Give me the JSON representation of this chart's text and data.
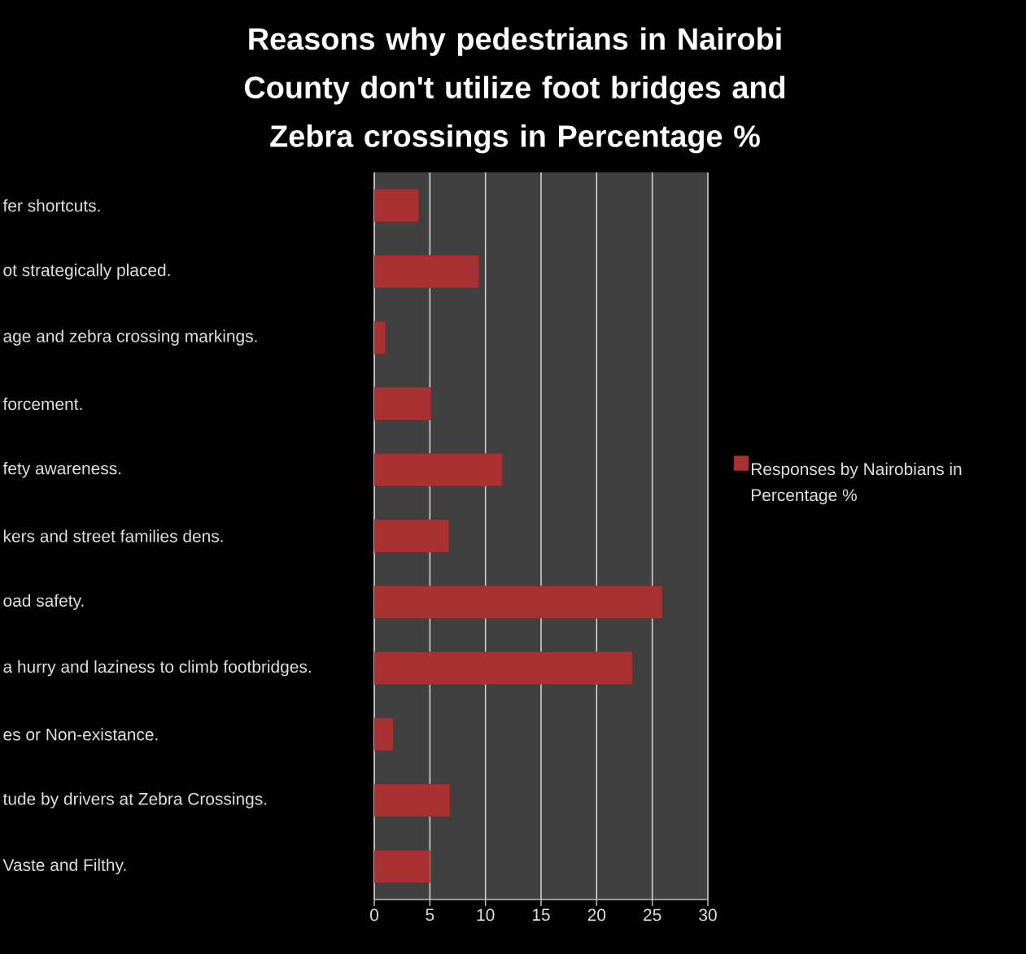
{
  "chart_data": {
    "type": "bar",
    "orientation": "horizontal",
    "title": "Reasons why pedestrians in Nairobi County don't utilize foot bridges and Zebra crossings in Percentage %",
    "categories": [
      "fer shortcuts.",
      "ot strategically placed.",
      "age and zebra crossing markings.",
      "forcement.",
      "fety awareness.",
      "kers and street families dens.",
      "oad safety.",
      "a hurry and laziness to climb footbridges.",
      "es or Non-existance.",
      "tude by drivers at Zebra Crossings.",
      "Vaste and Filthy."
    ],
    "series": [
      {
        "name": "Responses by Nairobians in Percentage %",
        "color": "#a83232",
        "values": [
          4.0,
          9.4,
          1.0,
          5.1,
          11.5,
          6.7,
          25.9,
          23.2,
          1.7,
          6.8,
          5.0
        ]
      }
    ],
    "xlim": [
      0,
      30
    ],
    "xticks": [
      0,
      5,
      10,
      15,
      20,
      25,
      30
    ],
    "grid": "x",
    "legend": "right"
  }
}
